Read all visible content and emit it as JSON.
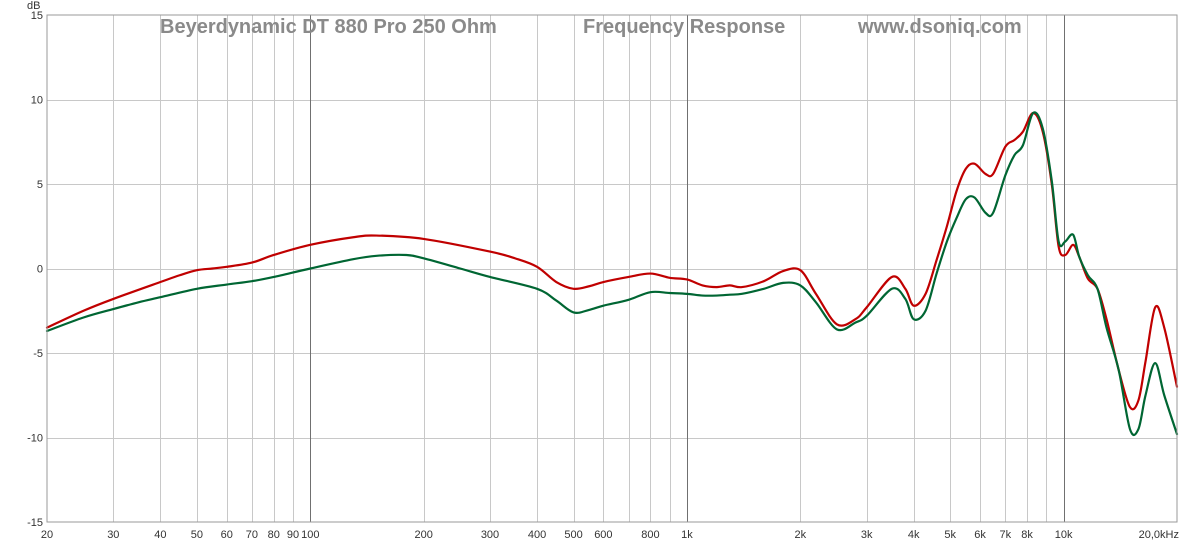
{
  "header": {
    "model": "Beyerdynamic DT 880 Pro 250 Ohm",
    "title": "Frequency Response",
    "site": "www.dsoniq.com"
  },
  "chart_data": {
    "type": "line",
    "x_scale": "log",
    "xlim": [
      20,
      20000
    ],
    "ylim": [
      -15,
      15
    ],
    "ylabel": "dB",
    "grid": true,
    "x_tick_labels": [
      {
        "value": 20,
        "label": "20"
      },
      {
        "value": 30,
        "label": "30"
      },
      {
        "value": 40,
        "label": "40"
      },
      {
        "value": 50,
        "label": "50"
      },
      {
        "value": 60,
        "label": "60"
      },
      {
        "value": 70,
        "label": "70"
      },
      {
        "value": 80,
        "label": "80"
      },
      {
        "value": 90,
        "label": "90"
      },
      {
        "value": 100,
        "label": "100"
      },
      {
        "value": 200,
        "label": "200"
      },
      {
        "value": 300,
        "label": "300"
      },
      {
        "value": 400,
        "label": "400"
      },
      {
        "value": 500,
        "label": "500"
      },
      {
        "value": 600,
        "label": "600"
      },
      {
        "value": 800,
        "label": "800"
      },
      {
        "value": 1000,
        "label": "1k"
      },
      {
        "value": 2000,
        "label": "2k"
      },
      {
        "value": 3000,
        "label": "3k"
      },
      {
        "value": 4000,
        "label": "4k"
      },
      {
        "value": 5000,
        "label": "5k"
      },
      {
        "value": 6000,
        "label": "6k"
      },
      {
        "value": 7000,
        "label": "7k"
      },
      {
        "value": 8000,
        "label": "8k"
      },
      {
        "value": 10000,
        "label": "10k"
      },
      {
        "value": 20000,
        "label": "20,0kHz"
      }
    ],
    "y_ticks": [
      {
        "value": 15,
        "label": "15"
      },
      {
        "value": 10,
        "label": "10"
      },
      {
        "value": 5,
        "label": "5"
      },
      {
        "value": 0,
        "label": "0"
      },
      {
        "value": -5,
        "label": "-5"
      },
      {
        "value": -10,
        "label": "-10"
      },
      {
        "value": -15,
        "label": "-15"
      }
    ],
    "series": [
      {
        "color": "#c00000",
        "points": [
          [
            20,
            -3.5
          ],
          [
            25,
            -2.5
          ],
          [
            30,
            -1.8
          ],
          [
            40,
            -0.8
          ],
          [
            45,
            -0.4
          ],
          [
            50,
            -0.1
          ],
          [
            55,
            0.0
          ],
          [
            60,
            0.1
          ],
          [
            70,
            0.35
          ],
          [
            80,
            0.8
          ],
          [
            100,
            1.4
          ],
          [
            130,
            1.85
          ],
          [
            150,
            1.95
          ],
          [
            200,
            1.75
          ],
          [
            300,
            1.0
          ],
          [
            350,
            0.6
          ],
          [
            400,
            0.1
          ],
          [
            450,
            -0.8
          ],
          [
            500,
            -1.2
          ],
          [
            550,
            -1.05
          ],
          [
            600,
            -0.8
          ],
          [
            700,
            -0.5
          ],
          [
            800,
            -0.3
          ],
          [
            900,
            -0.55
          ],
          [
            1000,
            -0.65
          ],
          [
            1100,
            -1.0
          ],
          [
            1200,
            -1.1
          ],
          [
            1300,
            -1.0
          ],
          [
            1400,
            -1.1
          ],
          [
            1600,
            -0.75
          ],
          [
            1800,
            -0.15
          ],
          [
            2000,
            -0.1
          ],
          [
            2200,
            -1.5
          ],
          [
            2500,
            -3.3
          ],
          [
            2800,
            -3.0
          ],
          [
            3000,
            -2.3
          ],
          [
            3500,
            -0.5
          ],
          [
            3800,
            -1.2
          ],
          [
            4000,
            -2.2
          ],
          [
            4300,
            -1.5
          ],
          [
            4600,
            0.5
          ],
          [
            4900,
            2.5
          ],
          [
            5200,
            4.6
          ],
          [
            5500,
            5.9
          ],
          [
            5800,
            6.2
          ],
          [
            6200,
            5.6
          ],
          [
            6500,
            5.6
          ],
          [
            7000,
            7.2
          ],
          [
            7400,
            7.6
          ],
          [
            7800,
            8.1
          ],
          [
            8300,
            9.2
          ],
          [
            8800,
            8.1
          ],
          [
            9300,
            5.0
          ],
          [
            9700,
            1.3
          ],
          [
            10100,
            0.8
          ],
          [
            10600,
            1.4
          ],
          [
            11000,
            0.7
          ],
          [
            11600,
            -0.6
          ],
          [
            12300,
            -1.2
          ],
          [
            13000,
            -3.0
          ],
          [
            14000,
            -6.0
          ],
          [
            15000,
            -8.2
          ],
          [
            15800,
            -7.8
          ],
          [
            16500,
            -5.5
          ],
          [
            17500,
            -2.3
          ],
          [
            18500,
            -3.5
          ],
          [
            20000,
            -7.0
          ]
        ]
      },
      {
        "color": "#006633",
        "points": [
          [
            20,
            -3.7
          ],
          [
            25,
            -2.9
          ],
          [
            30,
            -2.4
          ],
          [
            35,
            -2.0
          ],
          [
            40,
            -1.7
          ],
          [
            50,
            -1.2
          ],
          [
            60,
            -0.95
          ],
          [
            70,
            -0.75
          ],
          [
            80,
            -0.5
          ],
          [
            100,
            0.0
          ],
          [
            130,
            0.55
          ],
          [
            150,
            0.75
          ],
          [
            180,
            0.8
          ],
          [
            200,
            0.6
          ],
          [
            250,
            0.0
          ],
          [
            300,
            -0.5
          ],
          [
            400,
            -1.2
          ],
          [
            450,
            -1.9
          ],
          [
            500,
            -2.6
          ],
          [
            550,
            -2.45
          ],
          [
            600,
            -2.2
          ],
          [
            700,
            -1.85
          ],
          [
            800,
            -1.4
          ],
          [
            900,
            -1.45
          ],
          [
            1000,
            -1.5
          ],
          [
            1100,
            -1.6
          ],
          [
            1200,
            -1.6
          ],
          [
            1300,
            -1.55
          ],
          [
            1400,
            -1.5
          ],
          [
            1600,
            -1.2
          ],
          [
            1800,
            -0.85
          ],
          [
            2000,
            -1.0
          ],
          [
            2200,
            -2.0
          ],
          [
            2500,
            -3.6
          ],
          [
            2800,
            -3.2
          ],
          [
            3000,
            -2.8
          ],
          [
            3500,
            -1.2
          ],
          [
            3800,
            -1.8
          ],
          [
            4000,
            -3.0
          ],
          [
            4300,
            -2.5
          ],
          [
            4600,
            -0.3
          ],
          [
            4900,
            1.6
          ],
          [
            5200,
            3.0
          ],
          [
            5500,
            4.1
          ],
          [
            5800,
            4.2
          ],
          [
            6200,
            3.3
          ],
          [
            6500,
            3.3
          ],
          [
            7000,
            5.5
          ],
          [
            7400,
            6.7
          ],
          [
            7800,
            7.3
          ],
          [
            8300,
            9.2
          ],
          [
            8800,
            8.3
          ],
          [
            9300,
            5.2
          ],
          [
            9700,
            1.6
          ],
          [
            10100,
            1.6
          ],
          [
            10600,
            2.0
          ],
          [
            11000,
            0.7
          ],
          [
            11600,
            -0.4
          ],
          [
            12300,
            -1.2
          ],
          [
            13000,
            -3.5
          ],
          [
            14000,
            -6.0
          ],
          [
            15000,
            -9.5
          ],
          [
            15800,
            -9.5
          ],
          [
            16500,
            -7.5
          ],
          [
            17500,
            -5.6
          ],
          [
            18500,
            -7.5
          ],
          [
            20000,
            -9.8
          ]
        ]
      }
    ]
  }
}
